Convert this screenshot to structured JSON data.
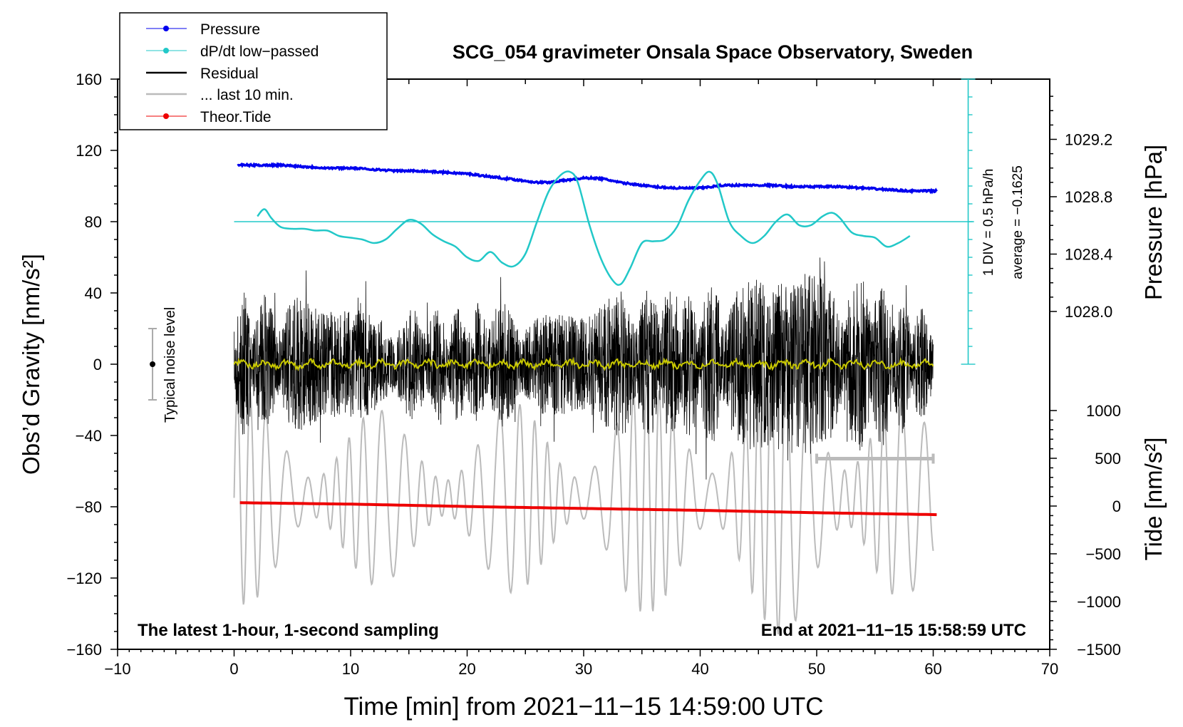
{
  "chart_data": {
    "type": "line",
    "title": "SCG_054 gravimeter Onsala Space Observatory, Sweden",
    "xlabel": "Time [min] from 2021−11−15 14:59:00 UTC",
    "ylabel": "Obs’d Gravity [nm/s²]",
    "y2label": "Pressure [hPa]",
    "y3label": "Tide [nm/s²]",
    "xlim": [
      -10,
      70
    ],
    "ylim": [
      -160,
      160
    ],
    "pressure_lim": [
      1027.6,
      1029.6
    ],
    "tide_lim": [
      -1500,
      1500
    ],
    "x_ticks": [
      "−10",
      "0",
      "10",
      "20",
      "30",
      "40",
      "50",
      "60",
      "70"
    ],
    "y_ticks": [
      "160",
      "120",
      "80",
      "40",
      "0",
      "−40",
      "−80",
      "−120",
      "−160"
    ],
    "pressure_ticks": [
      "1029.2",
      "1028.8",
      "1028.4",
      "1028.0"
    ],
    "tide_ticks": [
      "1000",
      "500",
      "0",
      "−500",
      "−1000",
      "−1500"
    ],
    "bottom_left_note": "The latest 1-hour, 1-second sampling",
    "bottom_right_note": "End at 2021−11−15 15:58:59 UTC",
    "noise_label": "Typical noise level",
    "dpdt_scale_label": "1 DIV = 0.5 hPa/h",
    "dpdt_average_label": "average = −0.1625",
    "legend": [
      {
        "label": "Pressure",
        "color": "#0000ee"
      },
      {
        "label": "dP/dt low−passed",
        "color": "#22c8c8"
      },
      {
        "label": "Residual",
        "color": "#000000"
      },
      {
        "label": "... last 10 min.",
        "color": "#bbbbbb"
      },
      {
        "label": "Theor.Tide",
        "color": "#ee0000"
      }
    ],
    "colors": {
      "pressure": "#0000ee",
      "dpdt": "#22c8c8",
      "residual": "#000000",
      "last10": "#bbbbbb",
      "tide": "#ee0000",
      "smoothed": "#c8c800"
    },
    "series": [
      {
        "name": "Pressure",
        "unit": "hPa",
        "x": [
          0.3,
          2,
          4,
          6,
          8,
          10,
          12,
          14,
          16,
          18,
          20,
          22,
          24,
          26,
          27,
          28,
          29,
          30,
          31,
          32,
          33,
          34,
          35,
          36,
          38,
          40,
          42,
          44,
          46,
          48,
          50,
          52,
          54,
          56,
          58,
          60.3
        ],
        "values": [
          1029.02,
          1029.02,
          1029.02,
          1029.01,
          1029.0,
          1029.0,
          1028.99,
          1028.98,
          1028.98,
          1028.97,
          1028.96,
          1028.94,
          1028.92,
          1028.9,
          1028.9,
          1028.91,
          1028.92,
          1028.93,
          1028.93,
          1028.92,
          1028.9,
          1028.89,
          1028.88,
          1028.87,
          1028.86,
          1028.86,
          1028.88,
          1028.88,
          1028.88,
          1028.87,
          1028.87,
          1028.87,
          1028.86,
          1028.85,
          1028.84,
          1028.84
        ]
      },
      {
        "name": "dP/dt low−passed",
        "unit": "nm/s² (offset display, 1 DIV = 0.5 hPa/h)",
        "x": [
          2,
          2.6,
          3.2,
          4,
          5,
          6,
          7,
          8,
          9,
          10,
          11,
          12,
          13,
          14,
          15,
          16,
          17,
          18,
          19,
          20,
          21,
          22,
          23,
          24,
          25,
          26,
          27,
          28,
          28.8,
          29.5,
          30.5,
          31.5,
          32.5,
          33.2,
          34,
          35,
          36,
          37,
          38,
          39,
          40,
          40.8,
          41.5,
          42.5,
          43.5,
          44.5,
          45.5,
          46.5,
          47.5,
          48.5,
          49.5,
          50.5,
          51.3,
          52,
          53,
          54,
          55,
          56,
          57,
          58
        ],
        "values": [
          83,
          87,
          82,
          77,
          76,
          76,
          75,
          75,
          72,
          71,
          70,
          68,
          70,
          76,
          81,
          79,
          73,
          69,
          66,
          60,
          58,
          63,
          57,
          55,
          62,
          80,
          97,
          106,
          108,
          102,
          78,
          59,
          47,
          45,
          54,
          68,
          69,
          70,
          77,
          92,
          103,
          108,
          101,
          80,
          72,
          68,
          72,
          80,
          84,
          78,
          78,
          83,
          85,
          82,
          74,
          72,
          71,
          66,
          68,
          72
        ]
      },
      {
        "name": "Residual",
        "unit": "nm/s²",
        "x": [
          0,
          5,
          10,
          15,
          20,
          25,
          30,
          35,
          40,
          45,
          50,
          55,
          60
        ],
        "values_envelope_amplitude": [
          45,
          42,
          38,
          35,
          38,
          40,
          42,
          48,
          50,
          55,
          60,
          55,
          30
        ]
      },
      {
        "name": "Theor.Tide",
        "unit": "nm/s² (tide axis)",
        "x": [
          0.5,
          10,
          20,
          30,
          40,
          50,
          60.3
        ],
        "values": [
          35,
          20,
          -5,
          -25,
          -45,
          -70,
          -90
        ]
      }
    ]
  }
}
